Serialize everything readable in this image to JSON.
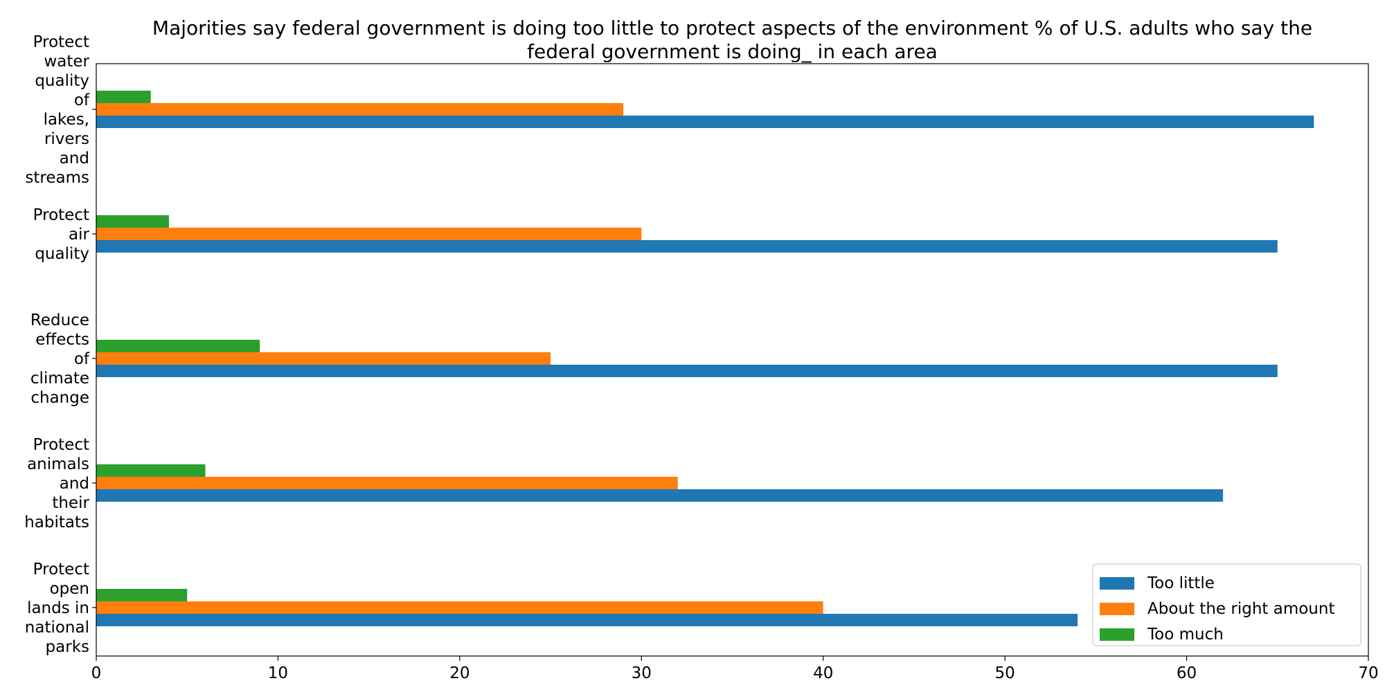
{
  "chart_data": {
    "type": "bar",
    "orientation": "horizontal",
    "title_lines": [
      "Majorities say federal government is doing too little to protect aspects of the environment % of U.S. adults who say the",
      "federal government is doing_ in each area"
    ],
    "categories": [
      "Protect water quality of lakes, rivers and streams",
      "Protect air quality",
      "Reduce effects of climate change",
      "Protect animals and their habitats",
      "Protect open lands in national parks"
    ],
    "category_label_lines": [
      [
        "Protect",
        "water",
        "quality",
        "of",
        "lakes,",
        "rivers",
        "and",
        "streams"
      ],
      [
        "Protect",
        "air",
        "quality"
      ],
      [
        "Reduce",
        "effects",
        "of",
        "climate",
        "change"
      ],
      [
        "Protect",
        "animals",
        "and",
        "their",
        "habitats"
      ],
      [
        "Protect",
        "open",
        "lands in",
        "national",
        "parks"
      ]
    ],
    "series": [
      {
        "name": "Too little",
        "color": "#1f77b4",
        "values": [
          67,
          65,
          65,
          62,
          54
        ]
      },
      {
        "name": "About the right amount",
        "color": "#ff7f0e",
        "values": [
          29,
          30,
          25,
          32,
          40
        ]
      },
      {
        "name": "Too much",
        "color": "#2ca02c",
        "values": [
          3,
          4,
          9,
          6,
          5
        ]
      }
    ],
    "xlim": [
      0,
      70
    ],
    "xticks": [
      0,
      10,
      20,
      30,
      40,
      50,
      60,
      70
    ],
    "grid": false,
    "legend_position": "lower-right"
  }
}
